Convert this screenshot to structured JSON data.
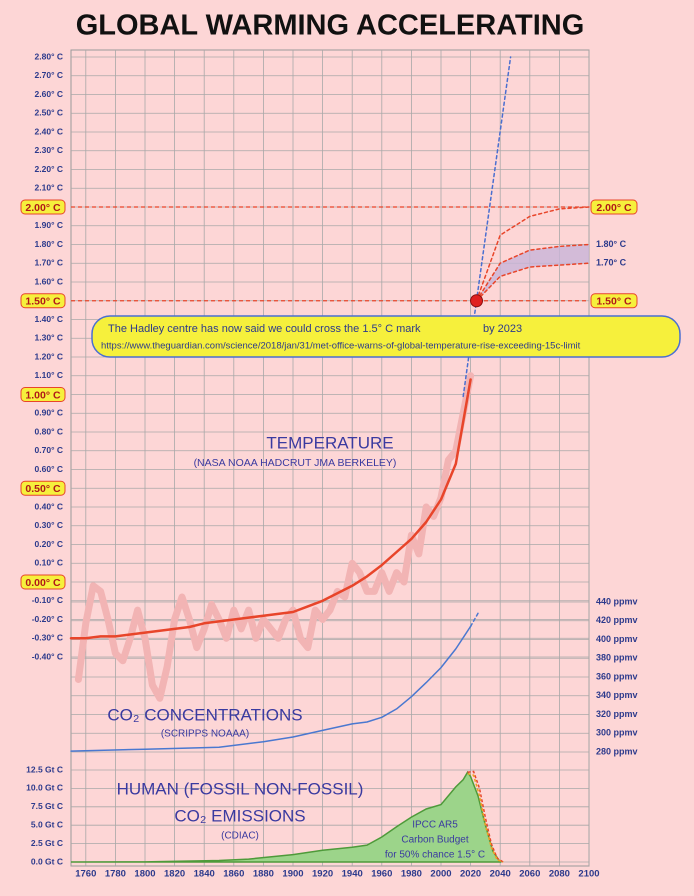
{
  "title": "GLOBAL WARMING ACCELERATING",
  "chart_data": [
    {
      "type": "line",
      "xlim": [
        1750,
        2100
      ],
      "xticks": [
        1760,
        1780,
        1800,
        1820,
        1840,
        1860,
        1880,
        1900,
        1920,
        1940,
        1960,
        1980,
        2000,
        2020,
        2040,
        2060,
        2080,
        2100
      ],
      "ylim": [
        -0.4,
        2.8
      ],
      "yticks": [
        {
          "value": -0.4,
          "label": "-0.40° C"
        },
        {
          "value": -0.3,
          "label": "-0.30° C"
        },
        {
          "value": -0.2,
          "label": "-0.20° C"
        },
        {
          "value": -0.1,
          "label": "-0.10° C"
        },
        {
          "value": 0,
          "label": "0.00° C",
          "boxed": true
        },
        {
          "value": 0.1,
          "label": "0.10° C"
        },
        {
          "value": 0.2,
          "label": "0.20° C"
        },
        {
          "value": 0.3,
          "label": "0.30° C"
        },
        {
          "value": 0.4,
          "label": "0.40° C"
        },
        {
          "value": 0.5,
          "label": "0.50° C",
          "boxed": true
        },
        {
          "value": 0.6,
          "label": "0.60° C"
        },
        {
          "value": 0.7,
          "label": "0.70° C"
        },
        {
          "value": 0.8,
          "label": "0.80° C"
        },
        {
          "value": 0.9,
          "label": "0.90° C"
        },
        {
          "value": 1,
          "label": "1.00° C",
          "boxed": true
        },
        {
          "value": 1.1,
          "label": "1.10° C"
        },
        {
          "value": 1.2,
          "label": "1.20° C"
        },
        {
          "value": 1.3,
          "label": "1.30° C"
        },
        {
          "value": 1.4,
          "label": "1.40° C"
        },
        {
          "value": 1.5,
          "label": "1.50° C",
          "boxed": true
        },
        {
          "value": 1.6,
          "label": "1.60° C"
        },
        {
          "value": 1.7,
          "label": "1.70° C"
        },
        {
          "value": 1.8,
          "label": "1.80° C"
        },
        {
          "value": 1.9,
          "label": "1.90° C"
        },
        {
          "value": 2,
          "label": "2.00° C",
          "boxed": true
        },
        {
          "value": 2.1,
          "label": "2.10° C"
        },
        {
          "value": 2.2,
          "label": "2.20° C"
        },
        {
          "value": 2.3,
          "label": "2.30° C"
        },
        {
          "value": 2.4,
          "label": "2.40° C"
        },
        {
          "value": 2.5,
          "label": "2.50° C"
        },
        {
          "value": 2.6,
          "label": "2.60° C"
        },
        {
          "value": 2.7,
          "label": "2.70° C"
        },
        {
          "value": 2.8,
          "label": "2.80° C"
        }
      ],
      "grid": true,
      "series": [
        {
          "color": "#f2b4b4",
          "width": 7,
          "x": [
            1755,
            1760,
            1765,
            1770,
            1775,
            1780,
            1785,
            1790,
            1795,
            1800,
            1805,
            1810,
            1815,
            1820,
            1825,
            1830,
            1835,
            1840,
            1845,
            1850,
            1855,
            1860,
            1865,
            1870,
            1875,
            1880,
            1885,
            1890,
            1895,
            1900,
            1905,
            1910,
            1915,
            1920,
            1925,
            1930,
            1935,
            1940,
            1945,
            1950,
            1955,
            1960,
            1965,
            1970,
            1975,
            1980,
            1985,
            1990,
            1995,
            2000,
            2005,
            2010,
            2015,
            2020
          ],
          "values": [
            -0.52,
            -0.22,
            -0.02,
            -0.05,
            -0.2,
            -0.38,
            -0.42,
            -0.3,
            -0.15,
            -0.3,
            -0.55,
            -0.62,
            -0.45,
            -0.2,
            -0.08,
            -0.2,
            -0.35,
            -0.25,
            -0.12,
            -0.2,
            -0.3,
            -0.15,
            -0.25,
            -0.15,
            -0.3,
            -0.2,
            -0.25,
            -0.3,
            -0.2,
            -0.15,
            -0.3,
            -0.35,
            -0.15,
            -0.2,
            -0.15,
            -0.05,
            -0.08,
            0.1,
            0.05,
            -0.05,
            -0.05,
            0.05,
            -0.05,
            0.05,
            0,
            0.25,
            0.15,
            0.4,
            0.35,
            0.45,
            0.65,
            0.7,
            0.9,
            1.1
          ]
        },
        {
          "color": "#e8452a",
          "width": 2.5,
          "x": [
            1750,
            1760,
            1770,
            1780,
            1790,
            1800,
            1810,
            1820,
            1830,
            1840,
            1850,
            1860,
            1870,
            1880,
            1890,
            1900,
            1910,
            1920,
            1930,
            1940,
            1950,
            1960,
            1970,
            1980,
            1990,
            2000,
            2010,
            2020
          ],
          "values": [
            -0.3,
            -0.3,
            -0.29,
            -0.29,
            -0.28,
            -0.27,
            -0.26,
            -0.25,
            -0.24,
            -0.22,
            -0.21,
            -0.2,
            -0.19,
            -0.18,
            -0.17,
            -0.16,
            -0.13,
            -0.1,
            -0.06,
            -0.02,
            0.03,
            0.09,
            0.16,
            0.23,
            0.32,
            0.44,
            0.63,
            1.08
          ]
        },
        {
          "color": "#4a6fd0",
          "width": 1.5,
          "dashed": true,
          "x": [
            2015,
            2024,
            2047
          ],
          "values": [
            0.99,
            1.5,
            2.8
          ]
        },
        {
          "color": "#e8452a",
          "width": 1.5,
          "dashed": true,
          "x": [
            2024,
            2040,
            2060,
            2080,
            2100
          ],
          "values": [
            1.5,
            1.85,
            1.95,
            1.99,
            2.0
          ]
        },
        {
          "color": "#e8452a",
          "width": 1.5,
          "dashed": true,
          "x": [
            2024,
            2040,
            2060,
            2080,
            2100
          ],
          "values": [
            1.5,
            1.7,
            1.77,
            1.79,
            1.8
          ],
          "end_label": "1.80° C"
        },
        {
          "color": "#e8452a",
          "width": 1.5,
          "dashed": true,
          "x": [
            2024,
            2040,
            2060,
            2080,
            2100
          ],
          "values": [
            1.5,
            1.63,
            1.68,
            1.69,
            1.7
          ],
          "end_label": "1.70° C"
        }
      ],
      "fill_between": [
        4,
        5
      ],
      "fill_color": "#c8b4d8",
      "hlines": [
        {
          "value": 2.0,
          "label": "2.00° C",
          "color": "#e8452a"
        },
        {
          "value": 1.5,
          "label": "1.50° C",
          "color": "#e8452a"
        }
      ],
      "point": {
        "x": 2024,
        "value": 1.5,
        "color": "#e02020"
      },
      "annotations": [
        "TEMPERATURE",
        "(NASA NOAA HADCRUT JMA BERKELEY)"
      ],
      "callout": {
        "text": "The Hadley centre has now said we could cross the 1.5° C mark",
        "year": "by 2023",
        "url": "https://www.theguardian.com/science/2018/jan/31/met-office-warns-of-global-temperature-rise-exceeding-15c-limit"
      }
    },
    {
      "type": "line",
      "xlim": [
        1750,
        2100
      ],
      "ylim": [
        280,
        440
      ],
      "yticks": [
        {
          "value": 280,
          "label": "280 ppmv"
        },
        {
          "value": 300,
          "label": "300 ppmv"
        },
        {
          "value": 320,
          "label": "320 ppmv"
        },
        {
          "value": 340,
          "label": "340 ppmv"
        },
        {
          "value": 360,
          "label": "360 ppmv"
        },
        {
          "value": 380,
          "label": "380 ppmv"
        },
        {
          "value": 400,
          "label": "400 ppmv"
        },
        {
          "value": 420,
          "label": "420 ppmv"
        },
        {
          "value": 440,
          "label": "440 ppmv"
        }
      ],
      "series": [
        {
          "color": "#4a78d0",
          "width": 1.5,
          "x": [
            1750,
            1800,
            1850,
            1880,
            1900,
            1920,
            1940,
            1950,
            1960,
            1970,
            1980,
            1990,
            2000,
            2010,
            2020
          ],
          "values": [
            281,
            283,
            285,
            291,
            296,
            303,
            310,
            312,
            317,
            326,
            339,
            354,
            370,
            390,
            414
          ]
        },
        {
          "color": "#4a78d0",
          "width": 1.5,
          "dashed": true,
          "x": [
            2020,
            2025
          ],
          "values": [
            414,
            428
          ]
        }
      ],
      "annotations": [
        "CO₂ CONCENTRATIONS",
        "(SCRIPPS NOAAA)"
      ]
    },
    {
      "type": "area",
      "xlim": [
        1750,
        2100
      ],
      "ylim": [
        0,
        12.5
      ],
      "yticks": [
        {
          "value": 0,
          "label": "0.0 Gt C"
        },
        {
          "value": 2.5,
          "label": "2.5 Gt C"
        },
        {
          "value": 5,
          "label": "5.0 Gt C"
        },
        {
          "value": 7.5,
          "label": "7.5 Gt C"
        },
        {
          "value": 10,
          "label": "10.0 Gt C"
        },
        {
          "value": 12.5,
          "label": "12.5 Gt C"
        }
      ],
      "series": [
        {
          "color": "#4e9a3a",
          "fill": "#9cd48a",
          "x": [
            1750,
            1800,
            1850,
            1870,
            1900,
            1920,
            1940,
            1950,
            1960,
            1970,
            1980,
            1990,
            2000,
            2010,
            2015,
            2018,
            2020,
            2025,
            2030,
            2035,
            2040
          ],
          "values": [
            0,
            0.02,
            0.2,
            0.4,
            1.0,
            1.6,
            2.0,
            2.3,
            3.4,
            4.8,
            6.1,
            7.2,
            7.8,
            10.2,
            11.2,
            12.2,
            11.6,
            9,
            5,
            1.5,
            0
          ]
        },
        {
          "color": "#e8452a",
          "dashed": true,
          "x": [
            2018,
            2022,
            2026,
            2030,
            2034,
            2038,
            2042
          ],
          "values": [
            12.2,
            12.3,
            10,
            6,
            2.5,
            0.5,
            0
          ]
        },
        {
          "color": "#f0a020",
          "dashed": true,
          "x": [
            2018,
            2022,
            2026,
            2030,
            2034,
            2038,
            2042
          ],
          "values": [
            12.0,
            11.8,
            9,
            5,
            2,
            0.3,
            0
          ]
        }
      ],
      "annotations": [
        "HUMAN (FOSSIL NON-FOSSIL)",
        "CO₂ EMISSIONS",
        "(CDIAC)",
        "IPCC AR5",
        "Carbon Budget",
        "for 50% chance 1.5° C"
      ]
    }
  ]
}
